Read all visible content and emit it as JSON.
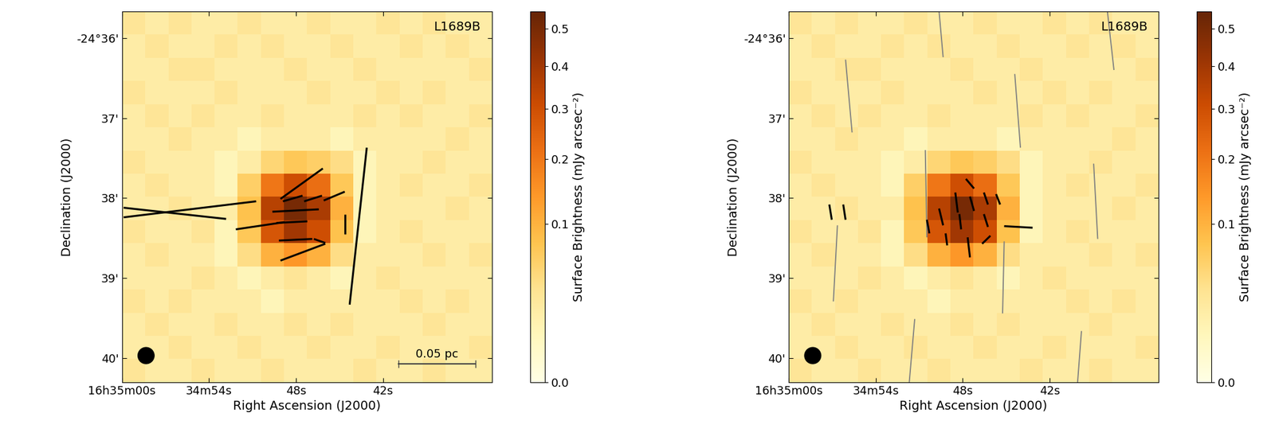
{
  "chart_data": [
    {
      "type": "heatmap",
      "title": "L1689B",
      "xlabel": "Right Ascension (J2000)",
      "ylabel": "Declination (J2000)",
      "xlim": [
        60,
        34.5
      ],
      "ylim": [
        40.3,
        35.67
      ],
      "xticks": [
        {
          "value": 60,
          "label": "16h35m00s"
        },
        {
          "value": 54,
          "label": "34m54s"
        },
        {
          "value": 48,
          "label": "48s"
        },
        {
          "value": 42,
          "label": "42s"
        }
      ],
      "yticks": [
        {
          "value": 36,
          "label": "-24°36'"
        },
        {
          "value": 37,
          "label": "37'"
        },
        {
          "value": 38,
          "label": "38'"
        },
        {
          "value": 39,
          "label": "39'"
        },
        {
          "value": 40,
          "label": "40'"
        }
      ],
      "cells": [
        [
          0.03,
          0.02,
          0.03,
          0.02,
          0.02,
          0.03,
          0.02,
          0.02,
          0.03,
          0.02,
          0.02,
          0.03,
          0.02,
          0.03,
          0.02,
          0.02
        ],
        [
          0.02,
          0.03,
          0.02,
          0.02,
          0.03,
          0.02,
          0.03,
          0.02,
          0.02,
          0.03,
          0.02,
          0.02,
          0.03,
          0.02,
          0.03,
          0.02
        ],
        [
          0.02,
          0.02,
          0.03,
          0.03,
          0.02,
          0.02,
          0.02,
          0.03,
          0.02,
          0.02,
          0.03,
          0.02,
          0.02,
          0.02,
          0.02,
          0.03
        ],
        [
          0.03,
          0.02,
          0.02,
          0.02,
          0.03,
          0.02,
          0.02,
          0.02,
          0.03,
          0.02,
          0.02,
          0.03,
          0.02,
          0.03,
          0.02,
          0.02
        ],
        [
          0.02,
          0.03,
          0.02,
          0.03,
          0.02,
          0.02,
          0.03,
          0.02,
          0.02,
          0.02,
          0.03,
          0.02,
          0.03,
          0.02,
          0.02,
          0.03
        ],
        [
          0.02,
          0.02,
          0.03,
          0.02,
          0.02,
          0.01,
          0.02,
          0.02,
          0.02,
          0.01,
          0.02,
          0.02,
          0.02,
          0.02,
          0.03,
          0.02
        ],
        [
          0.03,
          0.02,
          0.02,
          0.02,
          0.01,
          0.02,
          0.05,
          0.07,
          0.06,
          0.04,
          0.01,
          0.02,
          0.02,
          0.03,
          0.02,
          0.02
        ],
        [
          0.02,
          0.03,
          0.02,
          0.02,
          0.01,
          0.06,
          0.2,
          0.3,
          0.22,
          0.07,
          0.01,
          0.02,
          0.03,
          0.02,
          0.02,
          0.03
        ],
        [
          0.02,
          0.02,
          0.03,
          0.02,
          0.02,
          0.08,
          0.35,
          0.5,
          0.38,
          0.1,
          0.01,
          0.02,
          0.02,
          0.02,
          0.03,
          0.02
        ],
        [
          0.03,
          0.02,
          0.02,
          0.03,
          0.01,
          0.07,
          0.28,
          0.4,
          0.3,
          0.08,
          0.01,
          0.02,
          0.03,
          0.02,
          0.02,
          0.02
        ],
        [
          0.02,
          0.03,
          0.02,
          0.02,
          0.01,
          0.04,
          0.1,
          0.14,
          0.1,
          0.04,
          0.02,
          0.02,
          0.02,
          0.03,
          0.02,
          0.03
        ],
        [
          0.02,
          0.02,
          0.02,
          0.03,
          0.02,
          0.01,
          0.02,
          0.03,
          0.02,
          0.01,
          0.02,
          0.03,
          0.02,
          0.02,
          0.02,
          0.02
        ],
        [
          0.03,
          0.02,
          0.03,
          0.02,
          0.02,
          0.02,
          0.01,
          0.02,
          0.02,
          0.02,
          0.02,
          0.02,
          0.03,
          0.02,
          0.03,
          0.02
        ],
        [
          0.02,
          0.03,
          0.02,
          0.02,
          0.03,
          0.02,
          0.02,
          0.03,
          0.02,
          0.03,
          0.02,
          0.02,
          0.02,
          0.03,
          0.02,
          0.02
        ],
        [
          0.02,
          0.02,
          0.03,
          0.02,
          0.02,
          0.03,
          0.02,
          0.02,
          0.03,
          0.02,
          0.02,
          0.03,
          0.02,
          0.02,
          0.02,
          0.03
        ],
        [
          0.03,
          0.02,
          0.02,
          0.03,
          0.02,
          0.02,
          0.03,
          0.02,
          0.02,
          0.02,
          0.03,
          0.02,
          0.02,
          0.03,
          0.02,
          0.02
        ]
      ],
      "colorbar_label": "Surface Brightness (mJy arcsec⁻²)",
      "colorbar_lim": [
        0.0,
        0.55
      ],
      "colorbar_ticks": [
        0.0,
        0.1,
        0.2,
        0.3,
        0.4,
        0.5
      ],
      "vectors": [
        {
          "color": "black",
          "segments": [
            [
              59.89,
              38.12,
              52.82,
              38.26
            ],
            [
              59.89,
              38.24,
              50.75,
              38.04
            ],
            [
              52.15,
              38.39,
              48.79,
              38.3
            ],
            [
              49.07,
              38.01,
              46.15,
              37.63
            ],
            [
              48.9,
              38.04,
              47.55,
              37.97
            ],
            [
              47.44,
              38.04,
              46.21,
              37.97
            ],
            [
              46.09,
              38.03,
              44.64,
              37.92
            ],
            [
              49.63,
              38.17,
              46.43,
              38.14
            ],
            [
              49.35,
              38.31,
              47.22,
              38.29
            ],
            [
              49.18,
              38.53,
              46.88,
              38.51
            ],
            [
              46.77,
              38.51,
              45.98,
              38.56
            ],
            [
              49.07,
              38.78,
              45.98,
              38.57
            ],
            [
              44.64,
              38.2,
              44.64,
              38.45
            ],
            [
              43.12,
              37.37,
              44.3,
              39.33
            ]
          ]
        }
      ],
      "scale_bar": {
        "label": "0.05 pc",
        "x": [
          40.94,
          35.61
        ],
        "y": 40.07
      }
    },
    {
      "type": "heatmap",
      "title": "L1689B",
      "xlabel": "Right Ascension (J2000)",
      "ylabel": "Declination (J2000)",
      "xlim": [
        60,
        34.5
      ],
      "ylim": [
        40.3,
        35.67
      ],
      "xticks": [
        {
          "value": 60,
          "label": "16h35m00s"
        },
        {
          "value": 54,
          "label": "34m54s"
        },
        {
          "value": 48,
          "label": "48s"
        },
        {
          "value": 42,
          "label": "42s"
        }
      ],
      "yticks": [
        {
          "value": 36,
          "label": "-24°36'"
        },
        {
          "value": 37,
          "label": "37'"
        },
        {
          "value": 38,
          "label": "38'"
        },
        {
          "value": 39,
          "label": "39'"
        },
        {
          "value": 40,
          "label": "40'"
        }
      ],
      "cells": [
        [
          0.03,
          0.02,
          0.03,
          0.02,
          0.02,
          0.03,
          0.02,
          0.02,
          0.03,
          0.02,
          0.02,
          0.03,
          0.02,
          0.03,
          0.02,
          0.02
        ],
        [
          0.02,
          0.03,
          0.02,
          0.02,
          0.03,
          0.02,
          0.03,
          0.02,
          0.02,
          0.03,
          0.02,
          0.02,
          0.03,
          0.02,
          0.03,
          0.02
        ],
        [
          0.02,
          0.02,
          0.03,
          0.03,
          0.02,
          0.02,
          0.02,
          0.03,
          0.02,
          0.02,
          0.03,
          0.02,
          0.02,
          0.02,
          0.02,
          0.03
        ],
        [
          0.03,
          0.02,
          0.02,
          0.02,
          0.03,
          0.02,
          0.02,
          0.02,
          0.03,
          0.02,
          0.02,
          0.03,
          0.02,
          0.03,
          0.02,
          0.02
        ],
        [
          0.02,
          0.03,
          0.02,
          0.03,
          0.02,
          0.02,
          0.03,
          0.02,
          0.02,
          0.02,
          0.03,
          0.02,
          0.03,
          0.02,
          0.02,
          0.03
        ],
        [
          0.02,
          0.02,
          0.03,
          0.02,
          0.02,
          0.01,
          0.02,
          0.02,
          0.02,
          0.01,
          0.02,
          0.02,
          0.02,
          0.02,
          0.03,
          0.02
        ],
        [
          0.03,
          0.02,
          0.02,
          0.02,
          0.01,
          0.02,
          0.05,
          0.07,
          0.06,
          0.04,
          0.01,
          0.02,
          0.02,
          0.03,
          0.02,
          0.02
        ],
        [
          0.02,
          0.03,
          0.02,
          0.02,
          0.01,
          0.06,
          0.2,
          0.3,
          0.22,
          0.07,
          0.01,
          0.02,
          0.03,
          0.02,
          0.02,
          0.03
        ],
        [
          0.02,
          0.02,
          0.03,
          0.02,
          0.02,
          0.08,
          0.35,
          0.5,
          0.38,
          0.1,
          0.01,
          0.02,
          0.02,
          0.02,
          0.03,
          0.02
        ],
        [
          0.03,
          0.02,
          0.02,
          0.03,
          0.01,
          0.07,
          0.28,
          0.4,
          0.3,
          0.08,
          0.01,
          0.02,
          0.03,
          0.02,
          0.02,
          0.02
        ],
        [
          0.02,
          0.03,
          0.02,
          0.02,
          0.01,
          0.04,
          0.1,
          0.14,
          0.1,
          0.04,
          0.02,
          0.02,
          0.02,
          0.03,
          0.02,
          0.03
        ],
        [
          0.02,
          0.02,
          0.02,
          0.03,
          0.02,
          0.01,
          0.02,
          0.03,
          0.02,
          0.01,
          0.02,
          0.03,
          0.02,
          0.02,
          0.02,
          0.02
        ],
        [
          0.03,
          0.02,
          0.03,
          0.02,
          0.02,
          0.02,
          0.01,
          0.02,
          0.02,
          0.02,
          0.02,
          0.02,
          0.03,
          0.02,
          0.03,
          0.02
        ],
        [
          0.02,
          0.03,
          0.02,
          0.02,
          0.03,
          0.02,
          0.02,
          0.03,
          0.02,
          0.03,
          0.02,
          0.02,
          0.02,
          0.03,
          0.02,
          0.02
        ],
        [
          0.02,
          0.02,
          0.03,
          0.02,
          0.02,
          0.03,
          0.02,
          0.02,
          0.03,
          0.02,
          0.02,
          0.03,
          0.02,
          0.02,
          0.02,
          0.03
        ],
        [
          0.03,
          0.02,
          0.02,
          0.03,
          0.02,
          0.02,
          0.03,
          0.02,
          0.02,
          0.02,
          0.03,
          0.02,
          0.02,
          0.03,
          0.02,
          0.02
        ]
      ],
      "colorbar_label": "Surface Brightness (mJy arcsec⁻²)",
      "colorbar_lim": [
        0.0,
        0.55
      ],
      "colorbar_ticks": [
        0.0,
        0.1,
        0.2,
        0.3,
        0.4,
        0.5
      ],
      "vectors": [
        {
          "color": "gray",
          "segments": [
            [
              49.63,
              35.67,
              49.35,
              36.24
            ],
            [
              56.08,
              36.27,
              55.63,
              37.18
            ],
            [
              44.41,
              36.45,
              44.02,
              37.37
            ],
            [
              50.58,
              37.4,
              50.47,
              38.49
            ],
            [
              56.64,
              38.34,
              56.92,
              39.29
            ],
            [
              45.14,
              38.54,
              45.25,
              39.44
            ],
            [
              38.97,
              37.57,
              38.69,
              38.51
            ],
            [
              51.31,
              39.51,
              51.7,
              40.33
            ],
            [
              39.81,
              39.66,
              40.09,
              40.33
            ],
            [
              38.02,
              35.67,
              37.57,
              36.4
            ]
          ]
        },
        {
          "color": "black",
          "segments": [
            [
              57.2,
              38.08,
              57.03,
              38.27
            ],
            [
              56.24,
              38.08,
              56.08,
              38.27
            ],
            [
              50.47,
              38.27,
              50.3,
              38.44
            ],
            [
              49.63,
              38.13,
              49.35,
              38.34
            ],
            [
              48.51,
              37.93,
              48.34,
              38.18
            ],
            [
              48.23,
              38.2,
              48.11,
              38.39
            ],
            [
              47.66,
              38.49,
              47.5,
              38.74
            ],
            [
              47.5,
              37.98,
              47.22,
              38.16
            ],
            [
              46.54,
              37.93,
              46.26,
              38.08
            ],
            [
              45.7,
              37.95,
              45.42,
              38.08
            ],
            [
              46.54,
              38.2,
              46.26,
              38.36
            ],
            [
              46.66,
              38.57,
              46.09,
              38.47
            ],
            [
              45.14,
              38.35,
              43.18,
              38.37
            ],
            [
              47.78,
              37.76,
              47.22,
              37.88
            ],
            [
              49.18,
              38.44,
              49.07,
              38.59
            ]
          ]
        }
      ]
    }
  ]
}
